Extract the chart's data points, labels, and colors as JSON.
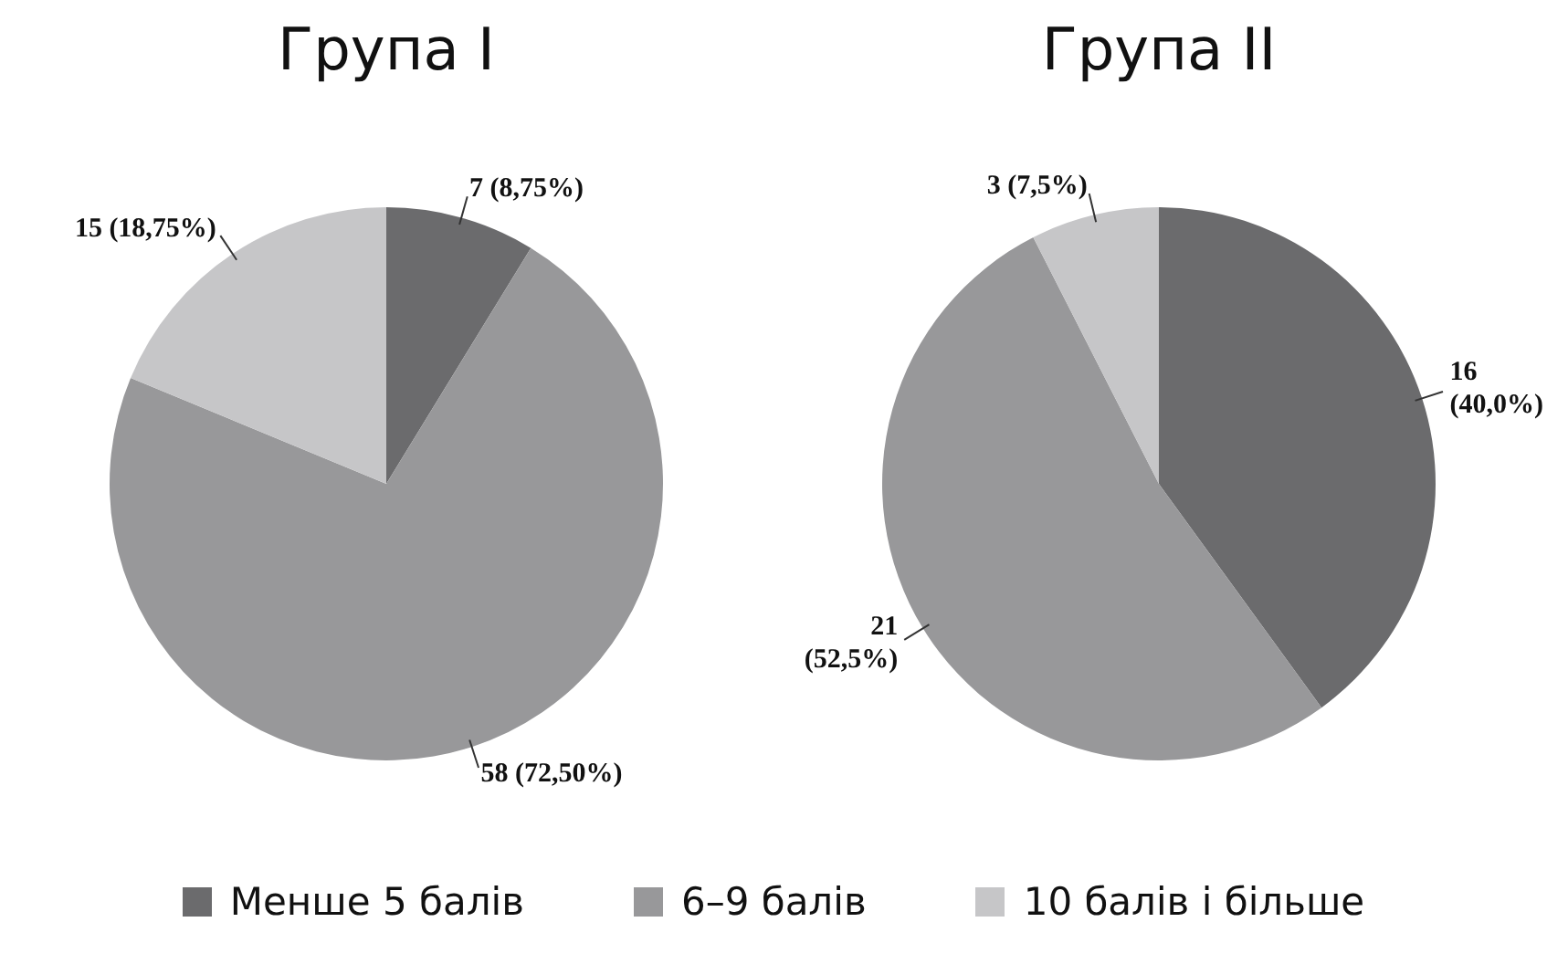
{
  "chart_data": [
    {
      "type": "pie",
      "title": "Група I",
      "categories": [
        "Менше 5 балів",
        "6–9 балів",
        "10 балів і більше"
      ],
      "values": [
        7,
        58,
        15
      ],
      "colors": [
        "#6b6b6d",
        "#98989a",
        "#c6c6c8"
      ],
      "value_labels": [
        "7 (8,75%)",
        "58 (72,50%)",
        "15 (18,75%)"
      ],
      "legend": "bottom"
    },
    {
      "type": "pie",
      "title": "Група II",
      "categories": [
        null,
        null,
        null
      ],
      "values": [
        16,
        21,
        3
      ],
      "colors": [
        "#6b6b6d",
        "#98989a",
        "#c6c6c8"
      ],
      "value_labels": [
        "16 (40,0%)",
        "21 (52,5%)",
        "3 (7,5%)"
      ]
    }
  ]
}
